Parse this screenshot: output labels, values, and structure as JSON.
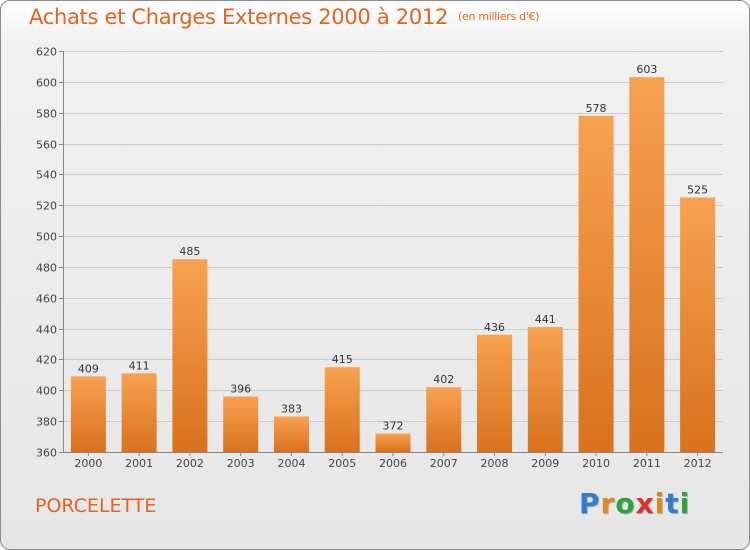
{
  "chart_data": {
    "type": "bar",
    "title": "Achats et Charges Externes 2000 à 2012",
    "subtitle": "(en milliers d'€)",
    "categories": [
      "2000",
      "2001",
      "2002",
      "2003",
      "2004",
      "2005",
      "2006",
      "2007",
      "2008",
      "2009",
      "2010",
      "2011",
      "2012"
    ],
    "values": [
      409,
      411,
      485,
      396,
      383,
      415,
      372,
      402,
      436,
      441,
      578,
      603,
      525
    ],
    "ylim": [
      360,
      620
    ],
    "yticks": [
      360,
      380,
      400,
      420,
      440,
      460,
      480,
      500,
      520,
      540,
      560,
      580,
      600,
      620
    ],
    "grid": true,
    "bar_color_top": "#f7a251",
    "bar_color_bottom": "#d9711d"
  },
  "location": "PORCELETTE",
  "logo": {
    "letters": [
      "P",
      "r",
      "o",
      "x",
      "i",
      "t",
      "i"
    ],
    "colors": [
      "#2e7fd1",
      "#e2891e",
      "#2ea33a",
      "#d9312b",
      "#e2891e",
      "#2e7fd1",
      "#2ea33a"
    ]
  },
  "colors": {
    "accent": "#e0651f"
  }
}
